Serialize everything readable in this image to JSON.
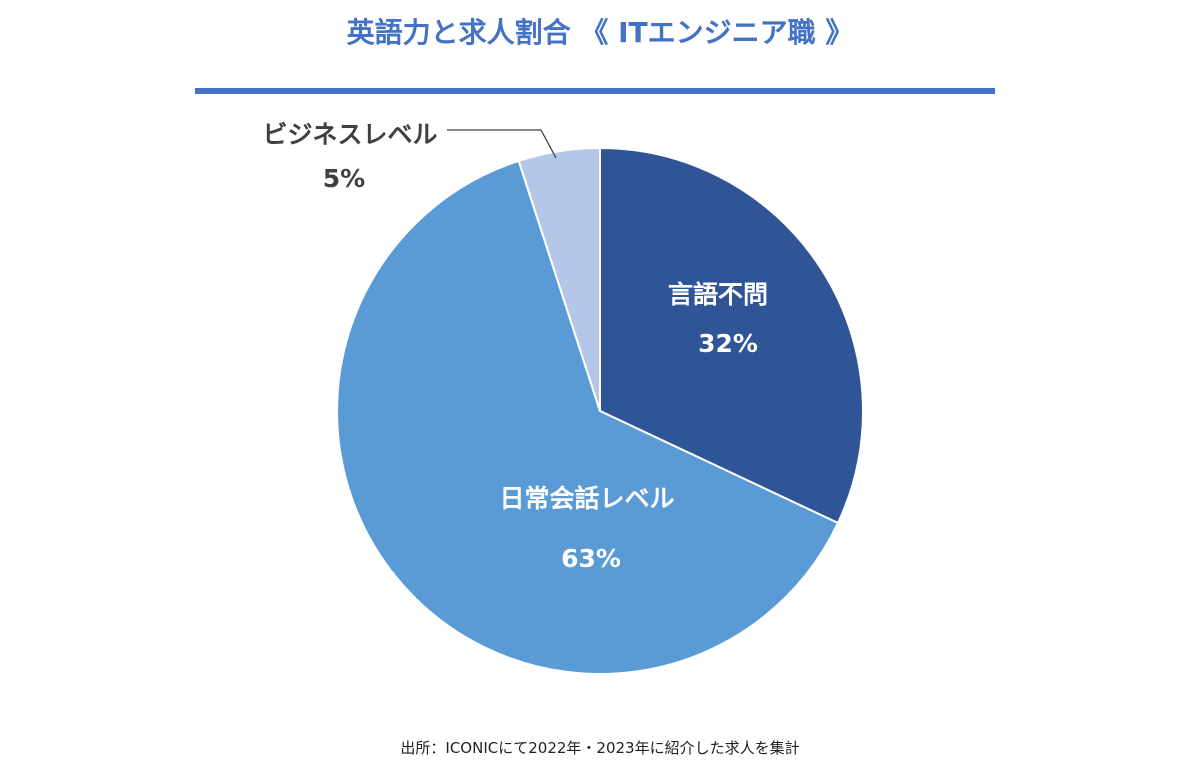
{
  "chart_data": {
    "type": "pie",
    "title": "英語力と求人割合 《 ITエンジニア職 》",
    "start_angle_deg": 0,
    "direction": "clockwise",
    "slices": [
      {
        "label": "言語不問",
        "value": 32,
        "value_label": "32%",
        "color": "#2f5597",
        "label_color": "#ffffff"
      },
      {
        "label": "日常会話レベル",
        "value": 63,
        "value_label": "63%",
        "color": "#5b9bd5",
        "label_color": "#ffffff"
      },
      {
        "label": "ビジネスレベル",
        "value": 5,
        "value_label": "5%",
        "color": "#b4c7e7",
        "label_color": "#404040"
      }
    ],
    "legend": "none",
    "source": "出所：ICONICにて2022年・2023年に紹介した求人を集計"
  },
  "colors": {
    "title": "#4472c4",
    "rule": "#4472c4",
    "leader_line": "#404040",
    "slice_border": "#ffffff"
  }
}
